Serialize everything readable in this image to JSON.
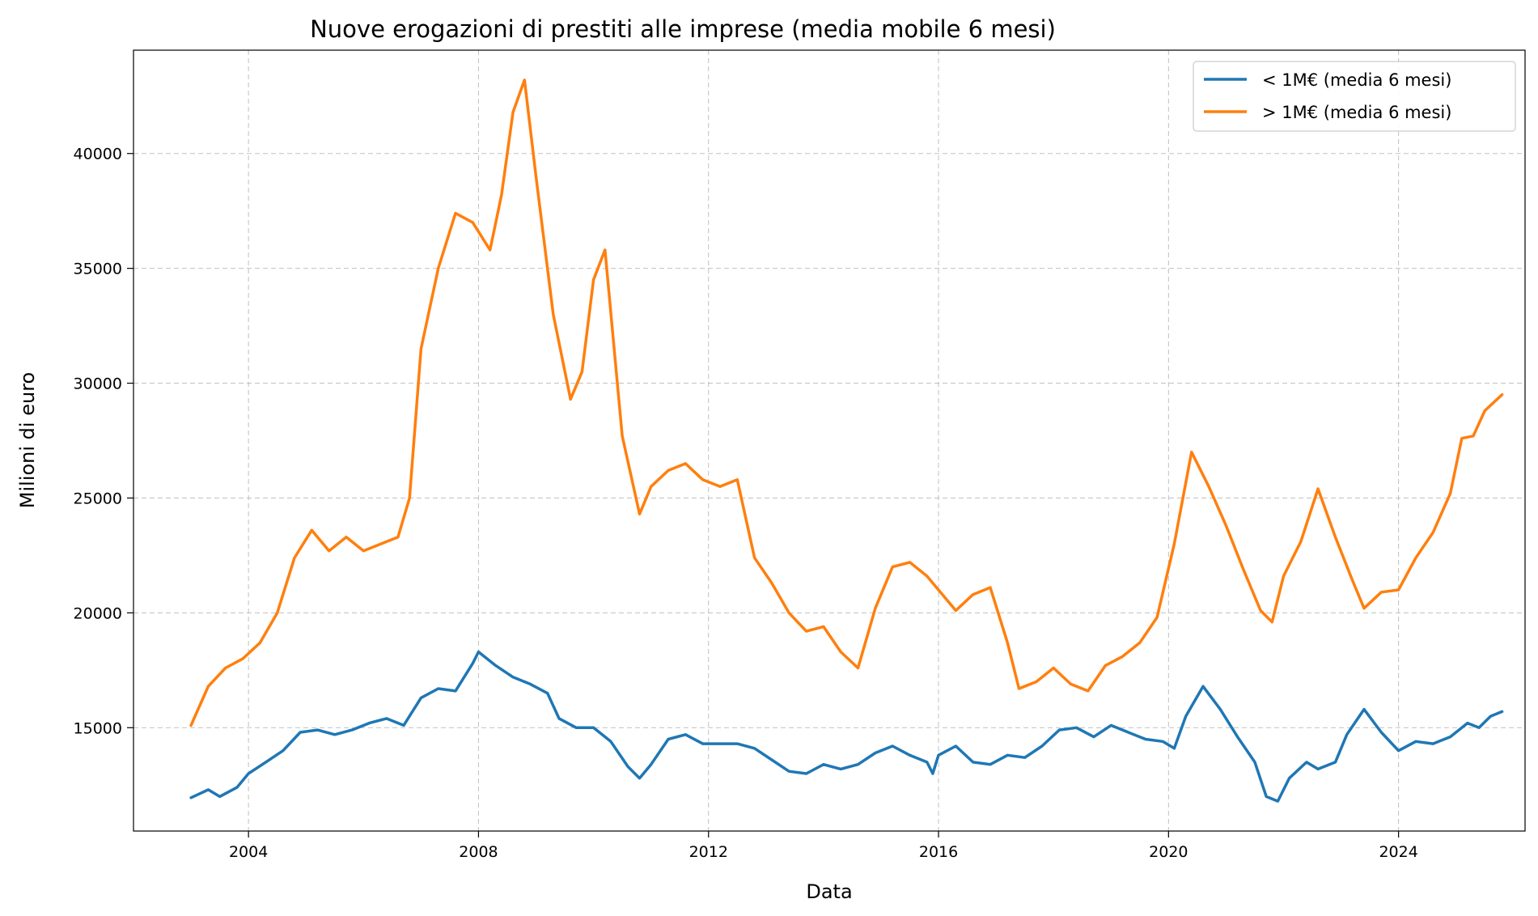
{
  "chart_data": {
    "type": "line",
    "title": "Nuove erogazioni di prestiti alle imprese (media mobile 6 mesi)",
    "xlabel": "Data",
    "ylabel": "Milioni di euro",
    "xlim": [
      2002.0,
      2026.2
    ],
    "ylim": [
      10500,
      44500
    ],
    "x_ticks": [
      2004,
      2008,
      2012,
      2016,
      2020,
      2024
    ],
    "x_tick_labels": [
      "2004",
      "2008",
      "2012",
      "2016",
      "2020",
      "2024"
    ],
    "y_ticks": [
      15000,
      20000,
      25000,
      30000,
      35000,
      40000
    ],
    "y_tick_labels": [
      "15000",
      "20000",
      "25000",
      "30000",
      "35000",
      "40000"
    ],
    "grid": true,
    "legend_position": "top-right",
    "series": [
      {
        "name": "< 1M€ (media 6 mesi)",
        "color": "#1f77b4",
        "points": [
          [
            2003.0,
            11950
          ],
          [
            2003.3,
            12300
          ],
          [
            2003.5,
            12000
          ],
          [
            2003.8,
            12400
          ],
          [
            2004.0,
            13000
          ],
          [
            2004.3,
            13500
          ],
          [
            2004.6,
            14000
          ],
          [
            2004.9,
            14800
          ],
          [
            2005.2,
            14900
          ],
          [
            2005.5,
            14700
          ],
          [
            2005.8,
            14900
          ],
          [
            2006.1,
            15200
          ],
          [
            2006.4,
            15400
          ],
          [
            2006.7,
            15100
          ],
          [
            2007.0,
            16300
          ],
          [
            2007.3,
            16700
          ],
          [
            2007.6,
            16600
          ],
          [
            2007.9,
            17800
          ],
          [
            2008.0,
            18300
          ],
          [
            2008.3,
            17700
          ],
          [
            2008.6,
            17200
          ],
          [
            2008.9,
            16900
          ],
          [
            2009.2,
            16500
          ],
          [
            2009.4,
            15400
          ],
          [
            2009.7,
            15000
          ],
          [
            2010.0,
            15000
          ],
          [
            2010.3,
            14400
          ],
          [
            2010.6,
            13300
          ],
          [
            2010.8,
            12800
          ],
          [
            2011.0,
            13400
          ],
          [
            2011.3,
            14500
          ],
          [
            2011.6,
            14700
          ],
          [
            2011.9,
            14300
          ],
          [
            2012.2,
            14300
          ],
          [
            2012.5,
            14300
          ],
          [
            2012.8,
            14100
          ],
          [
            2013.1,
            13600
          ],
          [
            2013.4,
            13100
          ],
          [
            2013.7,
            13000
          ],
          [
            2014.0,
            13400
          ],
          [
            2014.3,
            13200
          ],
          [
            2014.6,
            13400
          ],
          [
            2014.9,
            13900
          ],
          [
            2015.2,
            14200
          ],
          [
            2015.5,
            13800
          ],
          [
            2015.8,
            13500
          ],
          [
            2015.9,
            13000
          ],
          [
            2016.0,
            13800
          ],
          [
            2016.3,
            14200
          ],
          [
            2016.6,
            13500
          ],
          [
            2016.9,
            13400
          ],
          [
            2017.2,
            13800
          ],
          [
            2017.5,
            13700
          ],
          [
            2017.8,
            14200
          ],
          [
            2018.1,
            14900
          ],
          [
            2018.4,
            15000
          ],
          [
            2018.7,
            14600
          ],
          [
            2019.0,
            15100
          ],
          [
            2019.3,
            14800
          ],
          [
            2019.6,
            14500
          ],
          [
            2019.9,
            14400
          ],
          [
            2020.1,
            14100
          ],
          [
            2020.3,
            15500
          ],
          [
            2020.6,
            16800
          ],
          [
            2020.9,
            15800
          ],
          [
            2021.2,
            14600
          ],
          [
            2021.5,
            13500
          ],
          [
            2021.7,
            12000
          ],
          [
            2021.9,
            11800
          ],
          [
            2022.1,
            12800
          ],
          [
            2022.4,
            13500
          ],
          [
            2022.6,
            13200
          ],
          [
            2022.9,
            13500
          ],
          [
            2023.1,
            14700
          ],
          [
            2023.4,
            15800
          ],
          [
            2023.7,
            14800
          ],
          [
            2024.0,
            14000
          ],
          [
            2024.3,
            14400
          ],
          [
            2024.6,
            14300
          ],
          [
            2024.9,
            14600
          ],
          [
            2025.2,
            15200
          ],
          [
            2025.4,
            15000
          ],
          [
            2025.6,
            15500
          ],
          [
            2025.8,
            15700
          ]
        ]
      },
      {
        "name": "> 1M€ (media 6 mesi)",
        "color": "#ff7f0e",
        "points": [
          [
            2003.0,
            15100
          ],
          [
            2003.3,
            16800
          ],
          [
            2003.6,
            17600
          ],
          [
            2003.9,
            18000
          ],
          [
            2004.2,
            18700
          ],
          [
            2004.5,
            20000
          ],
          [
            2004.8,
            22400
          ],
          [
            2005.1,
            23600
          ],
          [
            2005.4,
            22700
          ],
          [
            2005.7,
            23300
          ],
          [
            2006.0,
            22700
          ],
          [
            2006.3,
            23000
          ],
          [
            2006.6,
            23300
          ],
          [
            2006.8,
            25000
          ],
          [
            2007.0,
            31500
          ],
          [
            2007.3,
            35000
          ],
          [
            2007.6,
            37400
          ],
          [
            2007.9,
            37000
          ],
          [
            2008.2,
            35800
          ],
          [
            2008.4,
            38200
          ],
          [
            2008.6,
            41800
          ],
          [
            2008.8,
            43200
          ],
          [
            2009.0,
            39000
          ],
          [
            2009.3,
            33000
          ],
          [
            2009.6,
            29300
          ],
          [
            2009.8,
            30500
          ],
          [
            2010.0,
            34500
          ],
          [
            2010.2,
            35800
          ],
          [
            2010.5,
            27700
          ],
          [
            2010.8,
            24300
          ],
          [
            2011.0,
            25500
          ],
          [
            2011.3,
            26200
          ],
          [
            2011.6,
            26500
          ],
          [
            2011.9,
            25800
          ],
          [
            2012.2,
            25500
          ],
          [
            2012.5,
            25800
          ],
          [
            2012.8,
            22400
          ],
          [
            2013.1,
            21300
          ],
          [
            2013.4,
            20000
          ],
          [
            2013.7,
            19200
          ],
          [
            2014.0,
            19400
          ],
          [
            2014.3,
            18300
          ],
          [
            2014.6,
            17600
          ],
          [
            2014.9,
            20200
          ],
          [
            2015.2,
            22000
          ],
          [
            2015.5,
            22200
          ],
          [
            2015.8,
            21600
          ],
          [
            2016.0,
            21000
          ],
          [
            2016.3,
            20100
          ],
          [
            2016.6,
            20800
          ],
          [
            2016.9,
            21100
          ],
          [
            2017.2,
            18700
          ],
          [
            2017.4,
            16700
          ],
          [
            2017.7,
            17000
          ],
          [
            2018.0,
            17600
          ],
          [
            2018.3,
            16900
          ],
          [
            2018.6,
            16600
          ],
          [
            2018.9,
            17700
          ],
          [
            2019.2,
            18100
          ],
          [
            2019.5,
            18700
          ],
          [
            2019.8,
            19800
          ],
          [
            2020.1,
            23000
          ],
          [
            2020.4,
            27000
          ],
          [
            2020.7,
            25500
          ],
          [
            2021.0,
            23800
          ],
          [
            2021.3,
            21900
          ],
          [
            2021.6,
            20100
          ],
          [
            2021.8,
            19600
          ],
          [
            2022.0,
            21600
          ],
          [
            2022.3,
            23100
          ],
          [
            2022.6,
            25400
          ],
          [
            2022.9,
            23300
          ],
          [
            2023.2,
            21400
          ],
          [
            2023.4,
            20200
          ],
          [
            2023.7,
            20900
          ],
          [
            2024.0,
            21000
          ],
          [
            2024.3,
            22400
          ],
          [
            2024.6,
            23500
          ],
          [
            2024.9,
            25200
          ],
          [
            2025.1,
            27600
          ],
          [
            2025.3,
            27700
          ],
          [
            2025.5,
            28800
          ],
          [
            2025.8,
            29500
          ]
        ]
      }
    ]
  }
}
